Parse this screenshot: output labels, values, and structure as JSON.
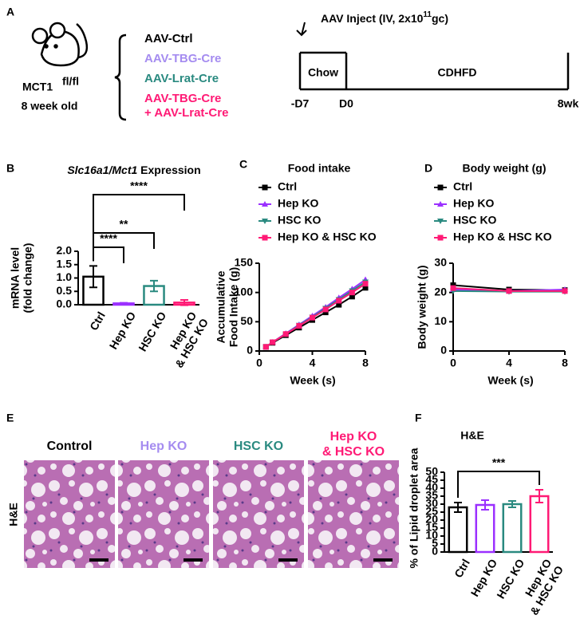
{
  "panel_labels": [
    "A",
    "B",
    "C",
    "D",
    "E",
    "F"
  ],
  "design": {
    "mouse": "MCT1",
    "genotype": "fl/fl",
    "age": "8 week old",
    "groups": [
      {
        "text": "AAV-Ctrl",
        "color": "#000000"
      },
      {
        "text": "AAV-TBG-Cre",
        "color": "#a58cf0"
      },
      {
        "text": "AAV-Lrat-Cre",
        "color": "#2a8a80"
      },
      {
        "text": "AAV-TBG-Cre\n+ AAV-Lrat-Cre",
        "color": "#ff1a75"
      }
    ],
    "injection": "AAV Inject (IV, 2x10",
    "exponent": "11",
    "unit": "gc)",
    "diets": [
      "Chow",
      "CDHFD"
    ],
    "timepoints": [
      "-D7",
      "D0",
      "8wk"
    ]
  },
  "histology": {
    "stain": "H&E",
    "groups": [
      {
        "text": "Control",
        "color": "#000000"
      },
      {
        "text": "Hep KO",
        "color": "#a58cf0"
      },
      {
        "text": "HSC KO",
        "color": "#2a8a80"
      },
      {
        "text": "Hep KO\n& HSC KO",
        "color": "#ff1a75"
      }
    ]
  },
  "chart_data": [
    {
      "type": "bar",
      "gene": "Slc16a1/Mct1",
      "title": "Expression",
      "ylabel": [
        "mRNA level",
        "(fold change)"
      ],
      "categories": [
        "Ctrl",
        "Hep KO",
        "HSC KO",
        "Hep KO\n& HSC KO"
      ],
      "values": [
        1.05,
        0.05,
        0.7,
        0.08
      ],
      "errors": [
        0.4,
        0.02,
        0.2,
        0.1
      ],
      "colors": [
        "#000000",
        "#9b30ff",
        "#2a8a80",
        "#ff1a75"
      ],
      "ylim": [
        0,
        2
      ],
      "yticks": [
        {
          "value": 0,
          "label": "0.0"
        },
        0.5,
        {
          "value": 1,
          "label": "1.0"
        },
        1.5,
        {
          "value": 2,
          "label": "2.0"
        }
      ],
      "annotations": [
        "****",
        "**",
        "****"
      ]
    },
    {
      "type": "line",
      "title": "Food intake",
      "xlabel": "Week (s)",
      "ylabel": [
        "Accumulative",
        "Food Intake (g)"
      ],
      "x": [
        0.5,
        1,
        2,
        3,
        4,
        5,
        6,
        7,
        8
      ],
      "series": [
        {
          "name": "Ctrl",
          "color": "#000000",
          "values": [
            7,
            14,
            27,
            40,
            53,
            66,
            79,
            93,
            108
          ]
        },
        {
          "name": "Hep KO",
          "color": "#9b30ff",
          "values": [
            7,
            15,
            30,
            45,
            60,
            75,
            91,
            106,
            122
          ]
        },
        {
          "name": "HSC KO",
          "color": "#2a8a80",
          "values": [
            7,
            15,
            29,
            44,
            58,
            73,
            88,
            103,
            118
          ]
        },
        {
          "name": "Hep KO & HSC KO",
          "color": "#ff1a75",
          "values": [
            7,
            15,
            29,
            43,
            57,
            71,
            86,
            100,
            115
          ]
        }
      ],
      "xlim": [
        0,
        8
      ],
      "xticks": [
        0,
        4,
        8
      ],
      "ylim": [
        0,
        150
      ],
      "yticks": [
        0,
        50,
        100,
        150
      ]
    },
    {
      "type": "line",
      "title": "Body weight (g)",
      "xlabel": "Week (s)",
      "ylabel": [
        "Body weight (g)"
      ],
      "x": [
        0,
        4,
        8
      ],
      "series": [
        {
          "name": "Ctrl",
          "color": "#000000",
          "values": [
            22.5,
            21,
            20.8
          ]
        },
        {
          "name": "Hep KO",
          "color": "#9b30ff",
          "values": [
            21,
            20.5,
            21
          ]
        },
        {
          "name": "HSC KO",
          "color": "#2a8a80",
          "values": [
            20.5,
            20.3,
            20.3
          ]
        },
        {
          "name": "Hep KO & HSC KO",
          "color": "#ff1a75",
          "values": [
            21.5,
            20.5,
            20.5
          ]
        }
      ],
      "xlim": [
        0,
        8
      ],
      "xticks": [
        0,
        4,
        8
      ],
      "ylim": [
        0,
        30
      ],
      "yticks": [
        0,
        10,
        20,
        30
      ]
    },
    {
      "type": "bar",
      "title": "H&E",
      "ylabel": [
        "% of Lipid droplet area"
      ],
      "categories": [
        "Ctrl",
        "Hep KO",
        "HSC KO",
        "Hep KO\n& HSC KO"
      ],
      "values": [
        28,
        29.5,
        30,
        35
      ],
      "errors": [
        3,
        3,
        2,
        4
      ],
      "colors": [
        "#000000",
        "#9b30ff",
        "#2a8a80",
        "#ff1a75"
      ],
      "ylim": [
        0,
        50
      ],
      "yticks": [
        0,
        5,
        10,
        15,
        20,
        25,
        30,
        35,
        40,
        45,
        50
      ],
      "annotations": [
        "***"
      ]
    }
  ]
}
